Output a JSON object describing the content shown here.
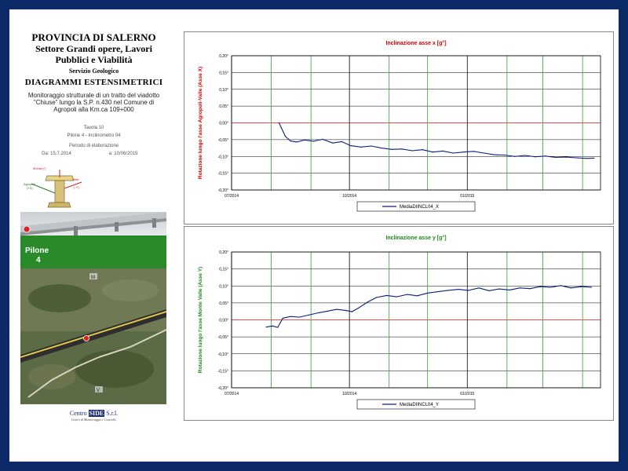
{
  "header": {
    "org": "PROVINCIA DI SALERNO",
    "dept_line1": "Settore Grandi opere, Lavori",
    "dept_line2": "Pubblici e Viabilità",
    "service": "Servizio Geologico",
    "doc_title": "DIAGRAMMI ESTENSIMETRICI",
    "desc_line1": "Monitoraggio strutturale di un tratto del viadotto",
    "desc_line2": "\"Chiuse\" lungo la S.P. n.430 nel Comune di",
    "desc_line3": "Agropoli alla Km.ca 109+000",
    "tavola": "Tavola 10",
    "pilone_info": "Pilone 4 - Inclinometro 04",
    "periodo_label": "Periodo di elaborazione",
    "date_from": "Da: 15.7.2014",
    "date_to": "a: 10/06/2015"
  },
  "sketch": {
    "label_top": "Monte(Y)",
    "label_left": "Agropoli",
    "label_left2": "(+X)",
    "label_right": "Valle",
    "label_right2": "(-Y)"
  },
  "photo": {
    "pilone_label": "Pilone",
    "pilone_number": "4",
    "marker_m": "M",
    "marker_v": "V"
  },
  "footer": {
    "company_a": "Centro ",
    "company_b": "SIDE",
    "company_c": " S.r.l.",
    "company_sub": "Centro di Monitoraggio e Controllo"
  },
  "colors": {
    "frame": "#0c2a68",
    "series": "#0b1f7a",
    "zero_line": "#e01010",
    "month_grid": "#2ea32e",
    "quarter_grid": "#000000",
    "title_x": "#d00000",
    "title_y": "#1a8a1a",
    "green_panel": "#2a8a2a"
  },
  "chart_data": [
    {
      "type": "line",
      "title": "Inclinazione asse x [g°]",
      "ylabel": "Rotazione lungo l'asse Agropoli-Valle (Asse X)",
      "xlabel": "",
      "ylim": [
        -0.2,
        0.2
      ],
      "yticks": [
        "0,20°",
        "0,15°",
        "0,10°",
        "0,05°",
        "0,00°",
        "-0,05°",
        "-0,10°",
        "-0,15°",
        "-0,20°"
      ],
      "xticks": [
        "07/2014",
        "10/2014",
        "01/2015"
      ],
      "grid": true,
      "legend_position": "bottom",
      "series": [
        {
          "name": "MediaDIINCL04_X",
          "x": [
            "2014-08-07",
            "2014-08-12",
            "2014-08-16",
            "2014-08-21",
            "2014-08-27",
            "2014-09-03",
            "2014-09-10",
            "2014-09-18",
            "2014-09-25",
            "2014-10-02",
            "2014-10-10",
            "2014-10-18",
            "2014-10-26",
            "2014-11-03",
            "2014-11-11",
            "2014-11-19",
            "2014-11-27",
            "2014-12-05",
            "2014-12-13",
            "2014-12-21",
            "2014-12-29",
            "2015-01-06",
            "2015-01-14",
            "2015-01-22",
            "2015-01-30",
            "2015-02-07",
            "2015-02-15",
            "2015-02-23",
            "2015-03-03",
            "2015-03-11",
            "2015-03-19",
            "2015-03-27",
            "2015-04-04",
            "2015-04-10"
          ],
          "y": [
            0.0,
            -0.04,
            -0.054,
            -0.057,
            -0.051,
            -0.055,
            -0.049,
            -0.06,
            -0.056,
            -0.068,
            -0.072,
            -0.069,
            -0.075,
            -0.079,
            -0.078,
            -0.083,
            -0.08,
            -0.087,
            -0.084,
            -0.09,
            -0.087,
            -0.085,
            -0.09,
            -0.095,
            -0.096,
            -0.1,
            -0.097,
            -0.101,
            -0.099,
            -0.103,
            -0.102,
            -0.104,
            -0.106,
            -0.105
          ]
        }
      ]
    },
    {
      "type": "line",
      "title": "Inclinazione asse y [g°]",
      "ylabel": "Rotazione lungo l'asse Monte Valle (Asse Y)",
      "xlabel": "",
      "ylim": [
        -0.2,
        0.2
      ],
      "yticks": [
        "0,20°",
        "0,15°",
        "0,10°",
        "0,05°",
        "0,00°",
        "-0,05°",
        "-0,10°",
        "-0,15°",
        "-0,20°"
      ],
      "xticks": [
        "07/2014",
        "10/2014",
        "01/2015"
      ],
      "grid": true,
      "legend_position": "bottom",
      "series": [
        {
          "name": "MediaDIINCL04_Y",
          "x": [
            "2014-07-28",
            "2014-08-02",
            "2014-08-06",
            "2014-08-10",
            "2014-08-16",
            "2014-08-23",
            "2014-08-30",
            "2014-09-07",
            "2014-09-14",
            "2014-09-21",
            "2014-09-28",
            "2014-10-03",
            "2014-10-08",
            "2014-10-15",
            "2014-10-22",
            "2014-10-30",
            "2014-11-07",
            "2014-11-15",
            "2014-11-23",
            "2014-12-01",
            "2014-12-09",
            "2014-12-17",
            "2014-12-25",
            "2015-01-02",
            "2015-01-10",
            "2015-01-18",
            "2015-01-26",
            "2015-02-03",
            "2015-02-11",
            "2015-02-19",
            "2015-02-27",
            "2015-03-07",
            "2015-03-15",
            "2015-03-23",
            "2015-03-31",
            "2015-04-08"
          ],
          "y": [
            -0.021,
            -0.018,
            -0.022,
            0.005,
            0.01,
            0.008,
            0.014,
            0.021,
            0.026,
            0.031,
            0.028,
            0.024,
            0.035,
            0.052,
            0.066,
            0.072,
            0.068,
            0.075,
            0.071,
            0.079,
            0.083,
            0.087,
            0.09,
            0.087,
            0.094,
            0.086,
            0.091,
            0.088,
            0.094,
            0.092,
            0.098,
            0.096,
            0.101,
            0.094,
            0.098,
            0.096
          ]
        }
      ]
    }
  ]
}
